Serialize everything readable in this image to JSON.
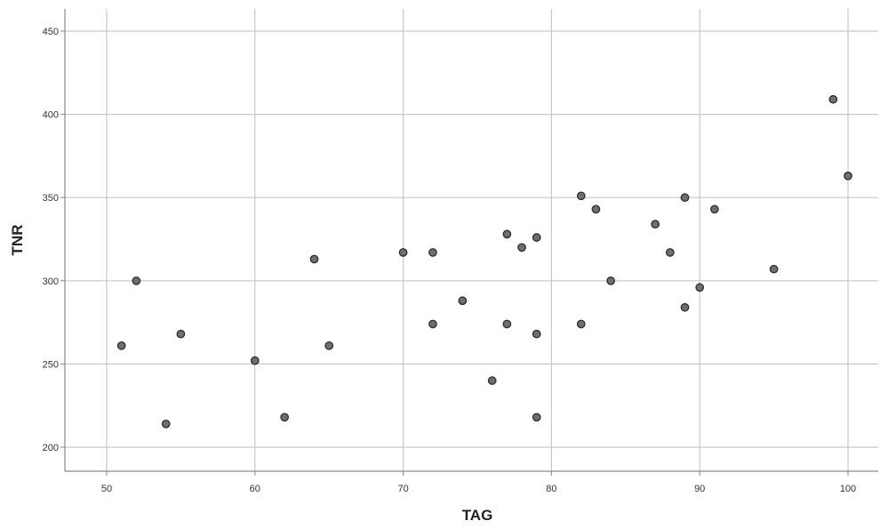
{
  "chart_data": {
    "type": "scatter",
    "title": "",
    "xlabel": "TAG",
    "ylabel": "TNR",
    "xlim": [
      47,
      103
    ],
    "ylim": [
      186,
      465
    ],
    "xticks": [
      50,
      60,
      70,
      80,
      90,
      100
    ],
    "yticks": [
      200,
      250,
      300,
      350,
      400,
      450
    ],
    "grid": true,
    "legend": "none",
    "colors": {
      "point_fill": "#6f6f6f",
      "point_stroke": "#2b2b2b",
      "grid": "#c8c8c8",
      "axis": "#888888"
    },
    "points": [
      {
        "x": 51,
        "y": 261
      },
      {
        "x": 52,
        "y": 300
      },
      {
        "x": 54,
        "y": 214
      },
      {
        "x": 55,
        "y": 268
      },
      {
        "x": 60,
        "y": 252
      },
      {
        "x": 62,
        "y": 218
      },
      {
        "x": 64,
        "y": 313
      },
      {
        "x": 65,
        "y": 261
      },
      {
        "x": 70,
        "y": 317
      },
      {
        "x": 72,
        "y": 317
      },
      {
        "x": 72,
        "y": 274
      },
      {
        "x": 74,
        "y": 288
      },
      {
        "x": 76,
        "y": 240
      },
      {
        "x": 77,
        "y": 328
      },
      {
        "x": 77,
        "y": 274
      },
      {
        "x": 78,
        "y": 320
      },
      {
        "x": 79,
        "y": 326
      },
      {
        "x": 79,
        "y": 268
      },
      {
        "x": 79,
        "y": 218
      },
      {
        "x": 82,
        "y": 351
      },
      {
        "x": 82,
        "y": 274
      },
      {
        "x": 83,
        "y": 343
      },
      {
        "x": 84,
        "y": 300
      },
      {
        "x": 87,
        "y": 334
      },
      {
        "x": 88,
        "y": 317
      },
      {
        "x": 89,
        "y": 350
      },
      {
        "x": 89,
        "y": 284
      },
      {
        "x": 90,
        "y": 296
      },
      {
        "x": 91,
        "y": 343
      },
      {
        "x": 95,
        "y": 307
      },
      {
        "x": 99,
        "y": 409
      },
      {
        "x": 100,
        "y": 363
      }
    ]
  }
}
